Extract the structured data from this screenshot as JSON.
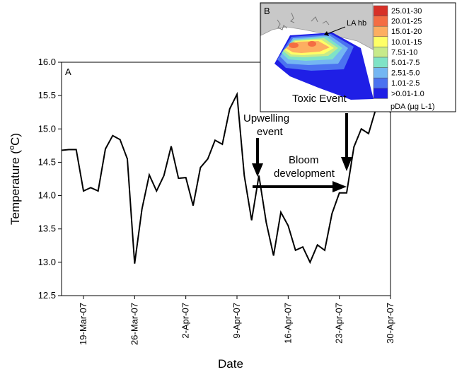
{
  "chart_data": {
    "type": "line",
    "panel_label": "A",
    "xlabel": "Date",
    "ylabel_prefix": "Temperature (",
    "ylabel_sup": "o",
    "ylabel_suffix": "C)",
    "ylim": [
      12.5,
      16.0
    ],
    "yticks": [
      "12.5",
      "13.0",
      "13.5",
      "14.0",
      "14.5",
      "15.0",
      "15.5",
      "16.0"
    ],
    "xticks": [
      "19-Mar-07",
      "26-Mar-07",
      "2-Apr-07",
      "9-Apr-07",
      "16-Apr-07",
      "23-Apr-07",
      "30-Apr-07"
    ],
    "xtick_day_offsets": [
      0,
      7,
      14,
      21,
      28,
      35,
      42
    ],
    "x_start_offset": -3,
    "x_end_offset": 42,
    "series": [
      {
        "day_offsets": [
          -3,
          -2,
          -1,
          0,
          1,
          2,
          3,
          4,
          5,
          6,
          7,
          8,
          9,
          10,
          11,
          12,
          13,
          14,
          15,
          16,
          17,
          18,
          19,
          20,
          21,
          22,
          23,
          24,
          25,
          26,
          27,
          28,
          29,
          30,
          31,
          32,
          33,
          34,
          35,
          36,
          37,
          38,
          39,
          40,
          41,
          42
        ],
        "values": [
          14.68,
          14.69,
          14.69,
          14.07,
          14.12,
          14.07,
          14.7,
          14.9,
          14.84,
          14.55,
          12.98,
          13.8,
          14.31,
          14.07,
          14.3,
          14.74,
          14.26,
          14.27,
          13.85,
          14.42,
          14.55,
          14.83,
          14.77,
          15.3,
          15.52,
          14.3,
          13.63,
          14.3,
          13.6,
          13.1,
          13.75,
          13.55,
          13.18,
          13.23,
          13.0,
          13.26,
          13.18,
          13.73,
          14.04,
          14.04,
          14.73,
          15.0,
          14.93,
          15.3,
          15.35,
          15.25
        ]
      }
    ],
    "annotations": {
      "upwelling_line1": "Upwelling",
      "upwelling_line2": "event",
      "bloom_line1": "Bloom",
      "bloom_line2": "development",
      "toxic_event": "Toxic Event"
    },
    "inset": {
      "panel_label": "B",
      "place_label": "LA hb",
      "legend_title": "pDA (µg L-1)",
      "legend": [
        {
          "label": "25.01-30",
          "color": "#d73027"
        },
        {
          "label": "20.01-25",
          "color": "#f46d43"
        },
        {
          "label": "15.01-20",
          "color": "#fdae61"
        },
        {
          "label": "10.01-15",
          "color": "#ffff66"
        },
        {
          "label": "7.51-10",
          "color": "#c7ea8a"
        },
        {
          "label": "5.01-7.5",
          "color": "#7fe3c6"
        },
        {
          "label": "2.51-5.0",
          "color": "#74b6f2"
        },
        {
          "label": "1.01-2.5",
          "color": "#4b72f0"
        },
        {
          "label": ">0.01-1.0",
          "color": "#1f1fe6"
        }
      ]
    }
  }
}
